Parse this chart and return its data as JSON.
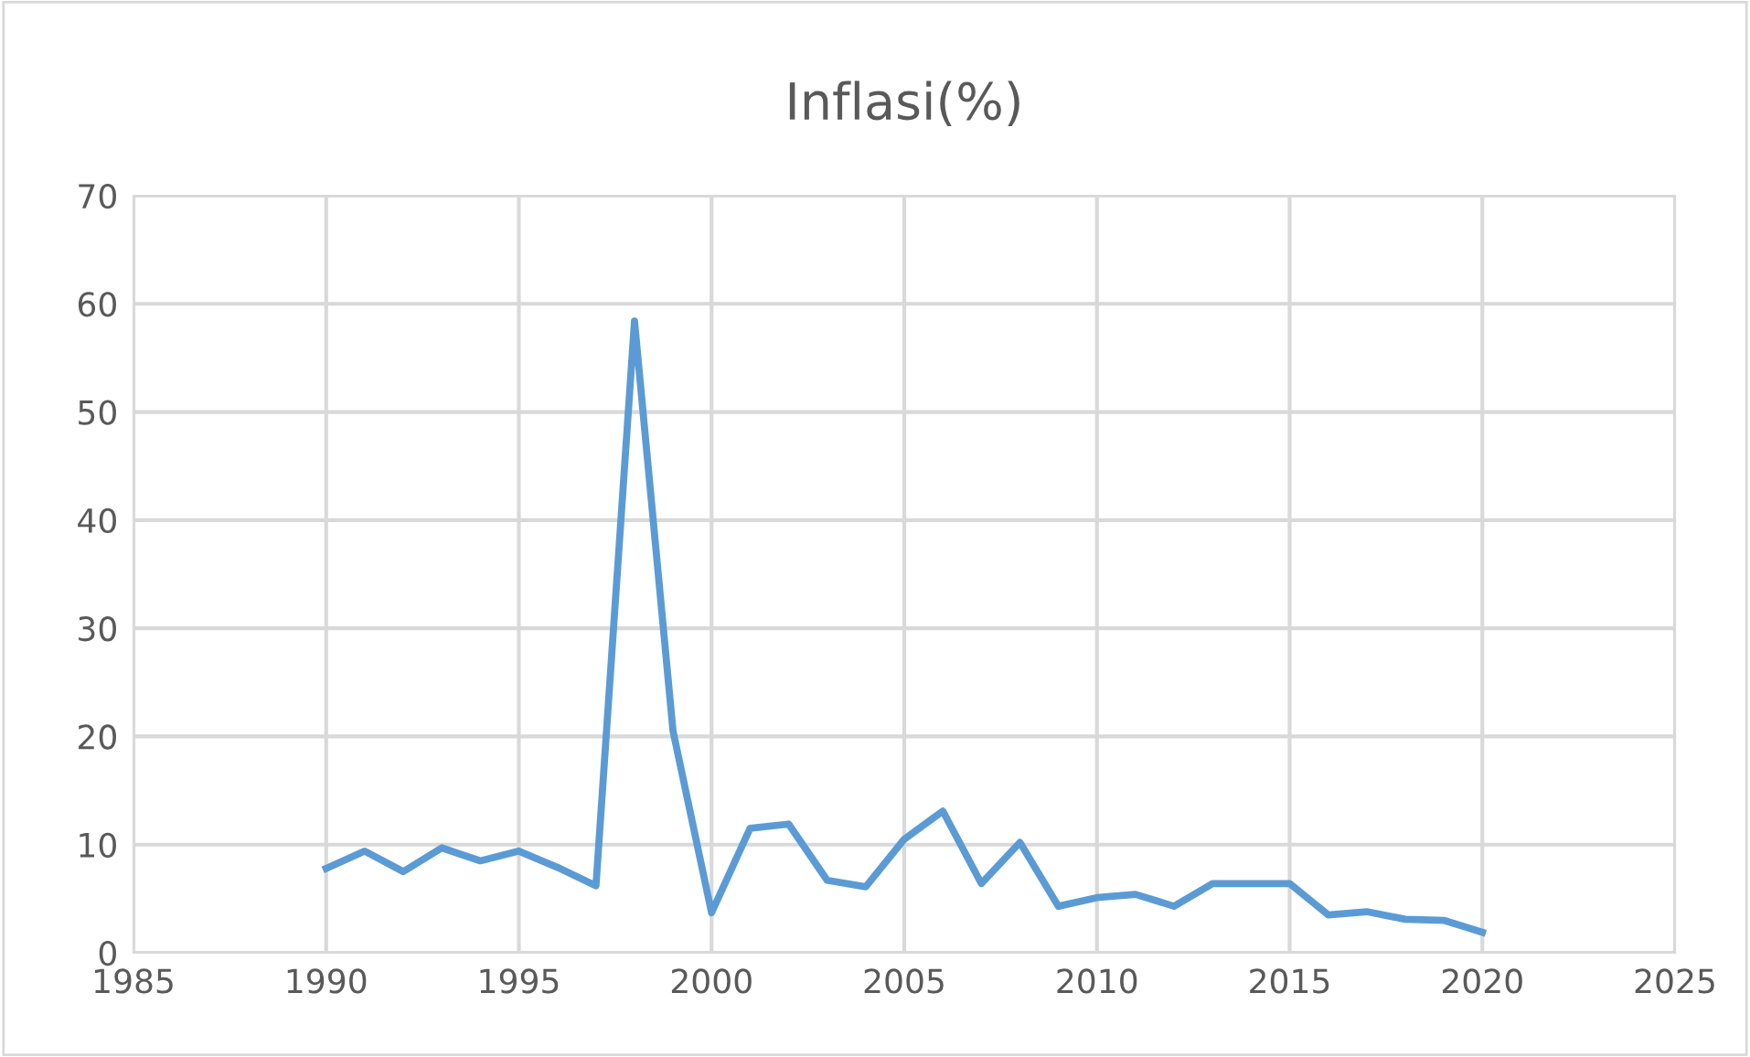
{
  "chart_data": {
    "type": "line",
    "title": "Inflasi(%)",
    "x": [
      1990,
      1991,
      1992,
      1993,
      1994,
      1995,
      1996,
      1997,
      1998,
      1999,
      2000,
      2001,
      2002,
      2003,
      2004,
      2005,
      2006,
      2007,
      2008,
      2009,
      2010,
      2011,
      2012,
      2013,
      2014,
      2015,
      2016,
      2017,
      2018,
      2019,
      2020
    ],
    "series": [
      {
        "color": "#5b9bd5",
        "values": [
          7.8,
          9.4,
          7.5,
          9.7,
          8.5,
          9.4,
          7.9,
          6.2,
          58.4,
          20.5,
          3.7,
          11.5,
          11.9,
          6.7,
          6.1,
          10.5,
          13.1,
          6.4,
          10.2,
          4.3,
          5.1,
          5.4,
          4.3,
          6.4,
          6.4,
          6.4,
          3.5,
          3.8,
          3.1,
          3.0,
          1.9
        ]
      }
    ],
    "xlim": [
      1985,
      2025
    ],
    "xticks": [
      1985,
      1990,
      1995,
      2000,
      2005,
      2010,
      2015,
      2020,
      2025
    ],
    "ylim": [
      0,
      70
    ],
    "yticks": [
      0,
      10,
      20,
      30,
      40,
      50,
      60,
      70
    ],
    "grid": true,
    "marker": "none",
    "line_style": "solid"
  }
}
